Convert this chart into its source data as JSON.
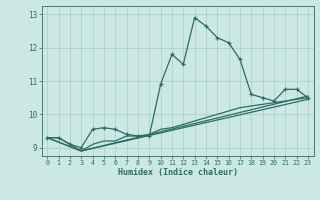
{
  "xlabel": "Humidex (Indice chaleur)",
  "bg_color": "#cce8e5",
  "grid_color": "#a8ceca",
  "line_color": "#2a6e63",
  "xlim": [
    -0.5,
    23.5
  ],
  "ylim": [
    8.75,
    13.25
  ],
  "yticks": [
    9,
    10,
    11,
    12,
    13
  ],
  "xticks": [
    0,
    1,
    2,
    3,
    4,
    5,
    6,
    7,
    8,
    9,
    10,
    11,
    12,
    13,
    14,
    15,
    16,
    17,
    18,
    19,
    20,
    21,
    22,
    23
  ],
  "series1_x": [
    0,
    1,
    2,
    3,
    4,
    5,
    6,
    7,
    8,
    9,
    10,
    11,
    12,
    13,
    14,
    15,
    16,
    17,
    18,
    19,
    20,
    21,
    22,
    23
  ],
  "series1_y": [
    9.3,
    9.3,
    9.1,
    9.0,
    9.55,
    9.6,
    9.55,
    9.4,
    9.35,
    9.35,
    10.9,
    11.8,
    11.5,
    12.9,
    12.65,
    12.3,
    12.15,
    11.65,
    10.6,
    10.5,
    10.4,
    10.75,
    10.75,
    10.5
  ],
  "series2_x": [
    0,
    1,
    2,
    3,
    4,
    5,
    6,
    7,
    8,
    9,
    10,
    11,
    12,
    13,
    14,
    15,
    16,
    17,
    18,
    19,
    20,
    21,
    22,
    23
  ],
  "series2_y": [
    9.3,
    9.3,
    9.1,
    8.9,
    9.1,
    9.2,
    9.2,
    9.35,
    9.35,
    9.4,
    9.55,
    9.6,
    9.7,
    9.8,
    9.9,
    10.0,
    10.1,
    10.2,
    10.25,
    10.3,
    10.35,
    10.4,
    10.45,
    10.5
  ],
  "series3_x": [
    0,
    3,
    23
  ],
  "series3_y": [
    9.3,
    8.9,
    10.45
  ],
  "series4_x": [
    0,
    3,
    23
  ],
  "series4_y": [
    9.3,
    8.9,
    10.55
  ]
}
